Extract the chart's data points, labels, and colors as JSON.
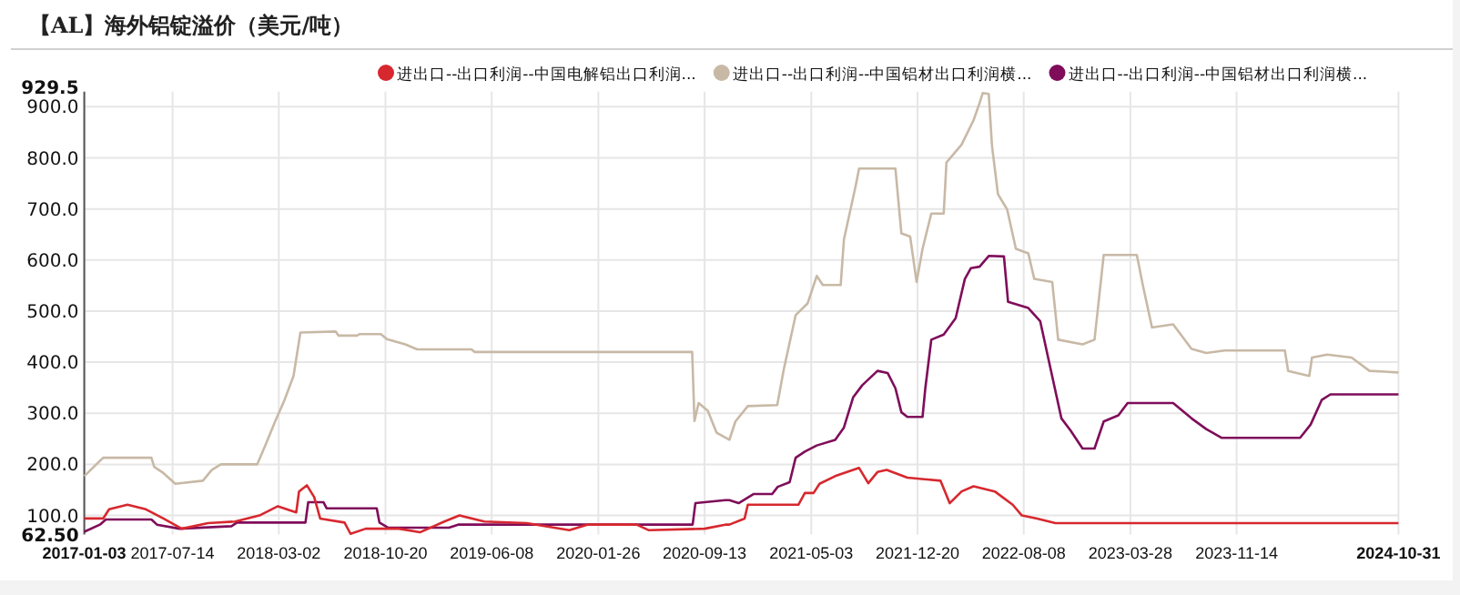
{
  "chart_data": {
    "type": "line",
    "title": "【AL】海外铝锭溢价（美元/吨）",
    "legend": "top",
    "grid": true,
    "xlim": [
      "2017-01-03",
      "2024-10-31"
    ],
    "xticks": [
      "2017-01-03",
      "2017-07-14",
      "2018-03-02",
      "2018-10-20",
      "2019-06-08",
      "2020-01-26",
      "2020-09-13",
      "2021-05-03",
      "2021-12-20",
      "2022-08-08",
      "2023-03-28",
      "2023-11-14",
      "2024-10-31"
    ],
    "ylim": [
      62.5,
      929.5
    ],
    "yticks": [
      {
        "value": 62.5,
        "label": "62.50"
      },
      {
        "value": 100,
        "label": "100.0"
      },
      {
        "value": 200,
        "label": "200.0"
      },
      {
        "value": 300,
        "label": "300.0"
      },
      {
        "value": 400,
        "label": "400.0"
      },
      {
        "value": 500,
        "label": "500.0"
      },
      {
        "value": 600,
        "label": "600.0"
      },
      {
        "value": 700,
        "label": "700.0"
      },
      {
        "value": 800,
        "label": "800.0"
      },
      {
        "value": 900,
        "label": "900.0"
      },
      {
        "value": 929.5,
        "label": "929.5"
      }
    ],
    "series": [
      {
        "name": "进出口--出口利润--中国电解铝出口利润...",
        "color": "#d7282f",
        "x": [
          "2017-01-03",
          "2017-02-13",
          "2017-02-26",
          "2017-04-07",
          "2017-05-17",
          "2017-06-24",
          "2017-08-03",
          "2017-09-29",
          "2017-11-27",
          "2018-01-19",
          "2018-02-28",
          "2018-04-09",
          "2018-04-15",
          "2018-05-02",
          "2018-05-18",
          "2018-05-31",
          "2018-07-23",
          "2018-08-05",
          "2018-09-07",
          "2018-11-18",
          "2019-01-03",
          "2019-02-25",
          "2019-03-30",
          "2019-05-23",
          "2019-08-23",
          "2019-11-24",
          "2020-01-02",
          "2020-04-18",
          "2020-05-15",
          "2020-09-13",
          "2020-10-28",
          "2020-11-06",
          "2020-12-09",
          "2020-12-16",
          "2021-04-05",
          "2021-04-19",
          "2021-05-08",
          "2021-05-21",
          "2021-06-24",
          "2021-08-15",
          "2021-09-04",
          "2021-09-24",
          "2021-10-14",
          "2021-11-28",
          "2022-02-08",
          "2022-02-28",
          "2022-03-26",
          "2022-04-21",
          "2022-06-06",
          "2022-07-15",
          "2022-08-04",
          "2022-09-06",
          "2022-10-16",
          "2024-10-31"
        ],
        "values": [
          94,
          94,
          112,
          121,
          112,
          94,
          74,
          85,
          88,
          100,
          118,
          106,
          147,
          159,
          136,
          94,
          86,
          64,
          74,
          74,
          67,
          88,
          100,
          88,
          85,
          71,
          82,
          82,
          71,
          74,
          82,
          82,
          94,
          121,
          121,
          144,
          144,
          162,
          177,
          193,
          163,
          185,
          189,
          174,
          168,
          124,
          147,
          157,
          147,
          121,
          100,
          94,
          85,
          85
        ]
      },
      {
        "name": "进出口--出口利润--中国铝材出口利润横...",
        "color": "#c8b9a6",
        "x": [
          "2017-01-03",
          "2017-02-13",
          "2017-05-29",
          "2017-06-04",
          "2017-06-24",
          "2017-07-20",
          "2017-09-18",
          "2017-10-07",
          "2017-10-27",
          "2018-01-14",
          "2018-02-03",
          "2018-02-22",
          "2018-03-14",
          "2018-04-03",
          "2018-04-18",
          "2018-07-04",
          "2018-07-10",
          "2018-08-19",
          "2018-08-25",
          "2018-10-10",
          "2018-10-23",
          "2018-12-02",
          "2018-12-28",
          "2019-04-25",
          "2019-05-02",
          "2020-08-17",
          "2020-08-22",
          "2020-08-31",
          "2020-09-20",
          "2020-10-09",
          "2020-11-06",
          "2020-11-19",
          "2020-12-16",
          "2021-02-18",
          "2021-03-04",
          "2021-03-30",
          "2021-04-25",
          "2021-05-15",
          "2021-05-28",
          "2021-07-06",
          "2021-07-13",
          "2021-08-08",
          "2021-08-15",
          "2021-11-02",
          "2021-11-15",
          "2021-12-04",
          "2021-12-18",
          "2021-12-31",
          "2022-01-19",
          "2022-02-15",
          "2022-02-21",
          "2022-03-26",
          "2022-04-21",
          "2022-05-04",
          "2022-05-11",
          "2022-05-24",
          "2022-05-31",
          "2022-06-13",
          "2022-07-03",
          "2022-07-22",
          "2022-08-18",
          "2022-08-31",
          "2022-10-09",
          "2022-10-22",
          "2022-12-14",
          "2023-01-09",
          "2023-01-29",
          "2023-04-11",
          "2023-04-24",
          "2023-05-14",
          "2023-06-29",
          "2023-08-08",
          "2023-09-09",
          "2023-10-19",
          "2024-02-27",
          "2024-03-05",
          "2024-04-20",
          "2024-04-26",
          "2024-05-29",
          "2024-07-21",
          "2024-08-29",
          "2024-10-31"
        ],
        "values": [
          177,
          213,
          213,
          195,
          183,
          162,
          168,
          189,
          200,
          200,
          242,
          284,
          325,
          373,
          458,
          460,
          452,
          452,
          455,
          455,
          445,
          435,
          425,
          425,
          420,
          420,
          285,
          320,
          305,
          262,
          248,
          284,
          314,
          316,
          385,
          492,
          515,
          569,
          551,
          551,
          640,
          747,
          779,
          779,
          652,
          646,
          557,
          622,
          691,
          691,
          791,
          826,
          874,
          907,
          927,
          925,
          824,
          729,
          699,
          622,
          613,
          563,
          557,
          444,
          435,
          444,
          610,
          610,
          551,
          468,
          474,
          426,
          418,
          423,
          423,
          383,
          373,
          409,
          415,
          409,
          383,
          380
        ]
      },
      {
        "name": "进出口--出口利润--中国铝材出口利润横...",
        "color": "#7f0d5a",
        "x": [
          "2017-01-03",
          "2017-02-06",
          "2017-02-19",
          "2017-05-29",
          "2017-06-10",
          "2017-07-29",
          "2017-11-19",
          "2017-12-01",
          "2018-04-29",
          "2018-05-05",
          "2018-06-07",
          "2018-06-14",
          "2018-10-01",
          "2018-10-07",
          "2018-10-26",
          "2019-03-07",
          "2019-03-27",
          "2020-08-18",
          "2020-08-24",
          "2020-10-28",
          "2020-11-06",
          "2020-11-26",
          "2020-12-29",
          "2021-02-07",
          "2021-02-19",
          "2021-03-17",
          "2021-03-30",
          "2021-04-19",
          "2021-05-15",
          "2021-06-24",
          "2021-07-13",
          "2021-08-02",
          "2021-08-22",
          "2021-09-24",
          "2021-10-16",
          "2021-11-02",
          "2021-11-15",
          "2021-11-28",
          "2021-12-31",
          "2022-01-06",
          "2022-01-19",
          "2022-02-15",
          "2022-03-13",
          "2022-04-02",
          "2022-04-15",
          "2022-05-04",
          "2022-05-24",
          "2022-06-26",
          "2022-07-05",
          "2022-08-18",
          "2022-09-13",
          "2022-10-03",
          "2022-10-29",
          "2022-11-18",
          "2022-12-14",
          "2023-01-09",
          "2023-01-29",
          "2023-03-02",
          "2023-03-22",
          "2023-06-29",
          "2023-08-08",
          "2023-09-09",
          "2023-10-12",
          "2024-03-31",
          "2024-04-23",
          "2024-05-17",
          "2024-06-05",
          "2024-10-31"
        ],
        "values": [
          68,
          82,
          92,
          92,
          82,
          74,
          79,
          86,
          86,
          126,
          126,
          114,
          114,
          86,
          76,
          76,
          82,
          82,
          124,
          130,
          130,
          124,
          142,
          142,
          156,
          165,
          213,
          225,
          237,
          248,
          272,
          331,
          355,
          383,
          379,
          349,
          302,
          293,
          293,
          349,
          444,
          454,
          486,
          563,
          584,
          587,
          608,
          607,
          518,
          506,
          480,
          397,
          290,
          266,
          231,
          231,
          284,
          296,
          320,
          320,
          290,
          269,
          252,
          252,
          278,
          326,
          337,
          337
        ]
      }
    ]
  }
}
